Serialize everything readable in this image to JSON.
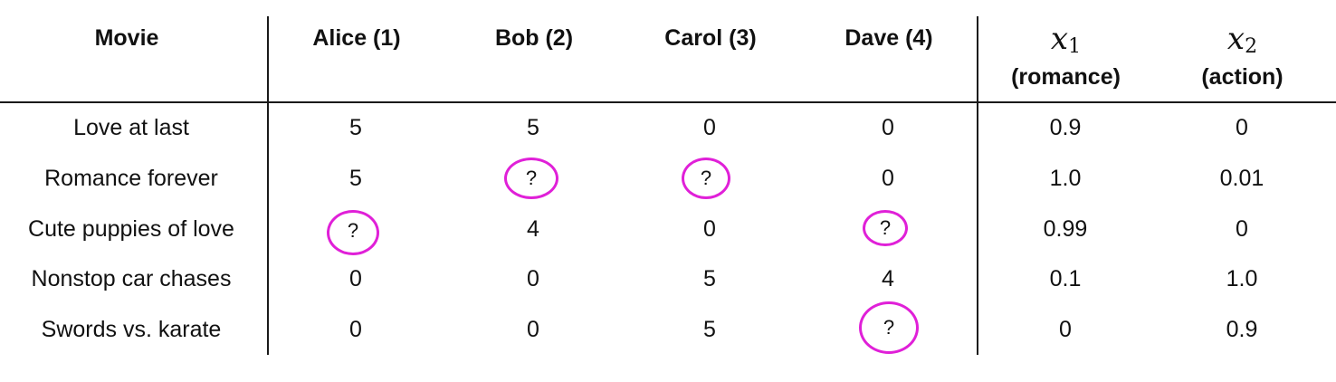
{
  "table": {
    "headers": {
      "movie": "Movie",
      "users": [
        "Alice (1)",
        "Bob (2)",
        "Carol (3)",
        "Dave (4)"
      ],
      "features": [
        {
          "symbol": "x",
          "subscript": "1",
          "name": "(romance)"
        },
        {
          "symbol": "x",
          "subscript": "2",
          "name": "(action)"
        }
      ]
    },
    "rows": [
      {
        "title": "Love at last",
        "ratings": [
          "5",
          "5",
          "0",
          "0"
        ],
        "features": [
          "0.9",
          "0"
        ]
      },
      {
        "title": "Romance forever",
        "ratings": [
          "5",
          "?",
          "?",
          "0"
        ],
        "features": [
          "1.0",
          "0.01"
        ]
      },
      {
        "title": "Cute puppies of love",
        "ratings": [
          "?",
          "4",
          "0",
          "?"
        ],
        "features": [
          "0.99",
          "0"
        ]
      },
      {
        "title": "Nonstop car chases",
        "ratings": [
          "0",
          "0",
          "5",
          "4"
        ],
        "features": [
          "0.1",
          "1.0"
        ]
      },
      {
        "title": "Swords vs. karate",
        "ratings": [
          "0",
          "0",
          "5",
          "?"
        ],
        "features": [
          "0",
          "0.9"
        ]
      }
    ]
  },
  "annotation_color": "#e020d8"
}
